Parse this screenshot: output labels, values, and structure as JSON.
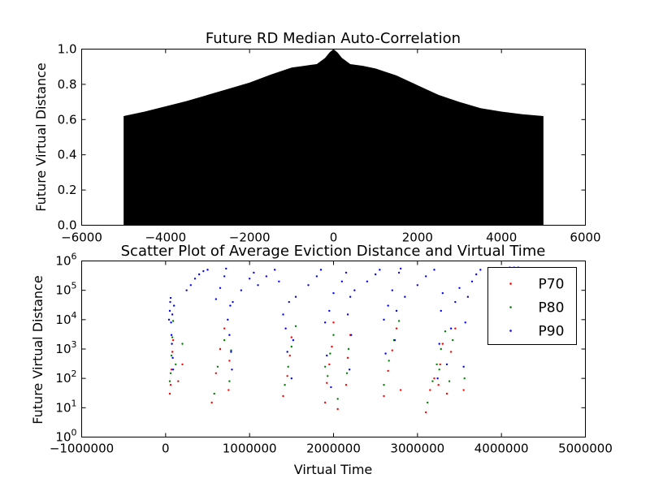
{
  "chart_data": [
    {
      "type": "area",
      "title": "Future RD Median Auto-Correlation",
      "xlabel": "",
      "ylabel": "Future Virtual Distance",
      "xlim": [
        -6000,
        6000
      ],
      "ylim": [
        0,
        1.0
      ],
      "xticks": [
        -6000,
        -4000,
        -2000,
        0,
        2000,
        4000,
        6000
      ],
      "xtick_labels": [
        "−6000",
        "−4000",
        "−2000",
        "0",
        "2000",
        "4000",
        "6000"
      ],
      "yticks": [
        0,
        0.2,
        0.4,
        0.6,
        0.8,
        1.0
      ],
      "ytick_labels": [
        "0.0",
        "0.2",
        "0.4",
        "0.6",
        "0.8",
        "1.0"
      ],
      "fill_color": "#000000",
      "x": [
        -5000,
        -4500,
        -4000,
        -3500,
        -3000,
        -2500,
        -2000,
        -1500,
        -1000,
        -700,
        -400,
        -200,
        -100,
        0,
        100,
        200,
        400,
        700,
        1000,
        1500,
        2000,
        2500,
        3000,
        3500,
        4000,
        4500,
        5000
      ],
      "y": [
        0.62,
        0.645,
        0.675,
        0.705,
        0.74,
        0.775,
        0.81,
        0.855,
        0.895,
        0.905,
        0.915,
        0.95,
        0.98,
        1.0,
        0.98,
        0.95,
        0.915,
        0.905,
        0.89,
        0.85,
        0.795,
        0.74,
        0.7,
        0.665,
        0.645,
        0.63,
        0.62
      ]
    },
    {
      "type": "scatter",
      "title": "Scatter Plot of Average Eviction Distance and Virtual Time",
      "xlabel": "Virtual Time",
      "ylabel": "Future Virtual Distance",
      "xlim": [
        -1000000,
        5000000
      ],
      "ylim": [
        1,
        1000000
      ],
      "yscale": "log",
      "xticks": [
        -1000000,
        0,
        1000000,
        2000000,
        3000000,
        4000000,
        5000000
      ],
      "xtick_labels": [
        "−1000000",
        "0",
        "1000000",
        "2000000",
        "3000000",
        "4000000",
        "5000000"
      ],
      "yticks": [
        1,
        10,
        100,
        1000,
        10000,
        100000,
        1000000
      ],
      "ytick_bases": [
        "10",
        "10",
        "10",
        "10",
        "10",
        "10",
        "10"
      ],
      "ytick_exponents": [
        "0",
        "1",
        "2",
        "3",
        "4",
        "5",
        "6"
      ],
      "legend": {
        "position": "top-right",
        "entries": [
          "P70",
          "P80",
          "P90"
        ]
      },
      "series": [
        {
          "name": "P70",
          "color": "#ff0000",
          "points": [
            [
              50000,
              30
            ],
            [
              60000,
              60
            ],
            [
              70000,
              200
            ],
            [
              80000,
              800
            ],
            [
              90000,
              2000
            ],
            [
              150000,
              80
            ],
            [
              200000,
              300
            ],
            [
              550000,
              15
            ],
            [
              600000,
              150
            ],
            [
              650000,
              1000
            ],
            [
              700000,
              5000
            ],
            [
              750000,
              40
            ],
            [
              760000,
              400
            ],
            [
              1400000,
              25
            ],
            [
              1450000,
              120
            ],
            [
              1480000,
              600
            ],
            [
              1500000,
              2500
            ],
            [
              1900000,
              15
            ],
            [
              1920000,
              70
            ],
            [
              1950000,
              300
            ],
            [
              1980000,
              1200
            ],
            [
              2000000,
              8000
            ],
            [
              2050000,
              9
            ],
            [
              2150000,
              60
            ],
            [
              2170000,
              500
            ],
            [
              2200000,
              3000
            ],
            [
              2600000,
              25
            ],
            [
              2650000,
              180
            ],
            [
              2700000,
              900
            ],
            [
              2750000,
              5000
            ],
            [
              2800000,
              40
            ],
            [
              3100000,
              7
            ],
            [
              3150000,
              40
            ],
            [
              3200000,
              100
            ],
            [
              3250000,
              60
            ],
            [
              3270000,
              300
            ],
            [
              3300000,
              1500
            ],
            [
              3350000,
              30
            ],
            [
              3400000,
              800
            ],
            [
              3450000,
              5000
            ],
            [
              3550000,
              40
            ]
          ]
        },
        {
          "name": "P80",
          "color": "#008000",
          "points": [
            [
              50000,
              80
            ],
            [
              60000,
              150
            ],
            [
              70000,
              600
            ],
            [
              80000,
              2500
            ],
            [
              90000,
              9000
            ],
            [
              120000,
              300
            ],
            [
              200000,
              1500
            ],
            [
              580000,
              30
            ],
            [
              620000,
              250
            ],
            [
              700000,
              2000
            ],
            [
              760000,
              80
            ],
            [
              780000,
              900
            ],
            [
              1420000,
              60
            ],
            [
              1460000,
              250
            ],
            [
              1500000,
              1200
            ],
            [
              1550000,
              6000
            ],
            [
              1900000,
              250
            ],
            [
              1930000,
              120
            ],
            [
              1960000,
              700
            ],
            [
              2000000,
              3000
            ],
            [
              2050000,
              20
            ],
            [
              2160000,
              150
            ],
            [
              2180000,
              1000
            ],
            [
              2600000,
              60
            ],
            [
              2660000,
              400
            ],
            [
              2720000,
              2000
            ],
            [
              2780000,
              9000
            ],
            [
              3120000,
              15
            ],
            [
              3180000,
              80
            ],
            [
              3230000,
              300
            ],
            [
              3260000,
              200
            ],
            [
              3280000,
              1000
            ],
            [
              3330000,
              4000
            ],
            [
              3380000,
              80
            ],
            [
              3420000,
              2000
            ],
            [
              3560000,
              100
            ]
          ]
        },
        {
          "name": "P90",
          "color": "#0000ff",
          "points": [
            [
              40000,
              10000
            ],
            [
              50000,
              20000
            ],
            [
              55000,
              40000
            ],
            [
              60000,
              55000
            ],
            [
              65000,
              8000
            ],
            [
              70000,
              3000
            ],
            [
              75000,
              1500
            ],
            [
              80000,
              15000
            ],
            [
              85000,
              500
            ],
            [
              90000,
              200
            ],
            [
              100000,
              30000
            ],
            [
              250000,
              100000
            ],
            [
              300000,
              150000
            ],
            [
              350000,
              250000
            ],
            [
              400000,
              350000
            ],
            [
              450000,
              450000
            ],
            [
              500000,
              500000
            ],
            [
              600000,
              50000
            ],
            [
              650000,
              120000
            ],
            [
              700000,
              300000
            ],
            [
              720000,
              550000
            ],
            [
              740000,
              10000
            ],
            [
              760000,
              3000
            ],
            [
              770000,
              30000
            ],
            [
              780000,
              800
            ],
            [
              790000,
              200
            ],
            [
              800000,
              40000
            ],
            [
              900000,
              100000
            ],
            [
              1000000,
              250000
            ],
            [
              1050000,
              400000
            ],
            [
              1100000,
              150000
            ],
            [
              1200000,
              300000
            ],
            [
              1300000,
              500000
            ],
            [
              1350000,
              200000
            ],
            [
              1400000,
              15000
            ],
            [
              1430000,
              5000
            ],
            [
              1450000,
              800
            ],
            [
              1470000,
              40000
            ],
            [
              1500000,
              100
            ],
            [
              1520000,
              2000
            ],
            [
              1550000,
              60000
            ],
            [
              1700000,
              150000
            ],
            [
              1800000,
              300000
            ],
            [
              1850000,
              500000
            ],
            [
              1900000,
              8000
            ],
            [
              1920000,
              600
            ],
            [
              1950000,
              20000
            ],
            [
              1970000,
              50
            ],
            [
              2000000,
              80000
            ],
            [
              2100000,
              200000
            ],
            [
              2150000,
              400000
            ],
            [
              2170000,
              15000
            ],
            [
              2190000,
              200
            ],
            [
              2200000,
              60000
            ],
            [
              2210000,
              3000
            ],
            [
              2250000,
              100000
            ],
            [
              2400000,
              200000
            ],
            [
              2500000,
              350000
            ],
            [
              2550000,
              500000
            ],
            [
              2600000,
              10000
            ],
            [
              2620000,
              700
            ],
            [
              2650000,
              30000
            ],
            [
              2700000,
              100000
            ],
            [
              2730000,
              2000
            ],
            [
              2750000,
              20000
            ],
            [
              2780000,
              400000
            ],
            [
              2800000,
              550000
            ],
            [
              2850000,
              60000
            ],
            [
              3000000,
              150000
            ],
            [
              3100000,
              300000
            ],
            [
              3200000,
              500000
            ],
            [
              3240000,
              100
            ],
            [
              3260000,
              1500
            ],
            [
              3280000,
              20000
            ],
            [
              3300000,
              80000
            ],
            [
              3350000,
              300
            ],
            [
              3400000,
              5000
            ],
            [
              3450000,
              40000
            ],
            [
              3500000,
              120000
            ],
            [
              3550000,
              250
            ],
            [
              3570000,
              8000
            ],
            [
              3600000,
              60000
            ],
            [
              3650000,
              200000
            ],
            [
              3700000,
              350000
            ],
            [
              3750000,
              500000
            ],
            [
              4100000,
              600000
            ],
            [
              4150000,
              600000
            ],
            [
              4200000,
              600000
            ]
          ]
        }
      ]
    }
  ]
}
